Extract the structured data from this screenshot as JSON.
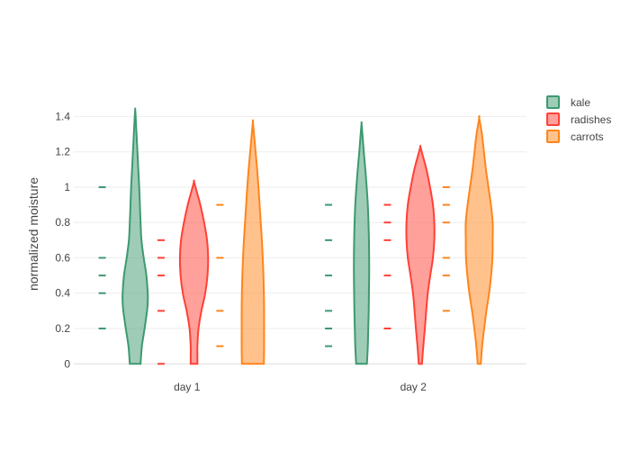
{
  "chart_data": {
    "type": "violin",
    "title": "",
    "xlabel": "",
    "ylabel": "normalized moisture",
    "categories": [
      "day 1",
      "day 2"
    ],
    "ylim": [
      -0.07,
      1.55
    ],
    "yticks": [
      0,
      0.2,
      0.4,
      0.6,
      0.8,
      1,
      1.2,
      1.4
    ],
    "ytick_labels": [
      "0",
      "0.2",
      "0.4",
      "0.6",
      "0.8",
      "1",
      "1.2",
      "1.4"
    ],
    "grid": true,
    "legend_position": "top-right",
    "series": [
      {
        "name": "kale",
        "color": "#3d9970",
        "points": {
          "day 1": [
            0.2,
            0.4,
            0.5,
            0.6,
            1.0
          ],
          "day 2": [
            0.1,
            0.2,
            0.3,
            0.5,
            0.7,
            0.9
          ]
        },
        "violin": {
          "day 1": {
            "min": 0,
            "max": 1.44,
            "profile": [
              [
                0,
                0.24
              ],
              [
                0.1,
                0.3
              ],
              [
                0.2,
                0.42
              ],
              [
                0.3,
                0.53
              ],
              [
                0.35,
                0.56
              ],
              [
                0.4,
                0.56
              ],
              [
                0.5,
                0.5
              ],
              [
                0.6,
                0.38
              ],
              [
                0.7,
                0.28
              ],
              [
                0.8,
                0.24
              ],
              [
                0.9,
                0.21
              ],
              [
                1.0,
                0.18
              ],
              [
                1.1,
                0.14
              ],
              [
                1.2,
                0.1
              ],
              [
                1.3,
                0.06
              ],
              [
                1.4,
                0.02
              ],
              [
                1.44,
                0
              ]
            ]
          },
          "day 2": {
            "min": 0,
            "max": 1.36,
            "profile": [
              [
                0,
                0.24
              ],
              [
                0.1,
                0.28
              ],
              [
                0.2,
                0.3
              ],
              [
                0.3,
                0.32
              ],
              [
                0.4,
                0.33
              ],
              [
                0.5,
                0.34
              ],
              [
                0.6,
                0.34
              ],
              [
                0.7,
                0.33
              ],
              [
                0.8,
                0.31
              ],
              [
                0.9,
                0.28
              ],
              [
                1.0,
                0.23
              ],
              [
                1.1,
                0.17
              ],
              [
                1.2,
                0.1
              ],
              [
                1.3,
                0.04
              ],
              [
                1.36,
                0
              ]
            ]
          }
        }
      },
      {
        "name": "radishes",
        "color": "#ff4136",
        "points": {
          "day 1": [
            0.0,
            0.3,
            0.5,
            0.6,
            0.7
          ],
          "day 2": [
            0.2,
            0.5,
            0.7,
            0.8,
            0.9
          ]
        },
        "violin": {
          "day 1": {
            "min": 0,
            "max": 1.03,
            "profile": [
              [
                0,
                0.15
              ],
              [
                0.05,
                0.15
              ],
              [
                0.1,
                0.15
              ],
              [
                0.2,
                0.2
              ],
              [
                0.3,
                0.33
              ],
              [
                0.4,
                0.5
              ],
              [
                0.5,
                0.6
              ],
              [
                0.6,
                0.63
              ],
              [
                0.7,
                0.58
              ],
              [
                0.8,
                0.45
              ],
              [
                0.9,
                0.28
              ],
              [
                0.97,
                0.13
              ],
              [
                1.03,
                0
              ]
            ]
          },
          "day 2": {
            "min": 0,
            "max": 1.23,
            "profile": [
              [
                0,
                0.07
              ],
              [
                0.1,
                0.13
              ],
              [
                0.2,
                0.2
              ],
              [
                0.3,
                0.26
              ],
              [
                0.4,
                0.33
              ],
              [
                0.5,
                0.44
              ],
              [
                0.6,
                0.56
              ],
              [
                0.7,
                0.62
              ],
              [
                0.8,
                0.62
              ],
              [
                0.9,
                0.56
              ],
              [
                1.0,
                0.43
              ],
              [
                1.1,
                0.27
              ],
              [
                1.2,
                0.06
              ],
              [
                1.23,
                0
              ]
            ]
          }
        }
      },
      {
        "name": "carrots",
        "color": "#ff851b",
        "points": {
          "day 1": [
            0.1,
            0.3,
            0.6,
            0.9
          ],
          "day 2": [
            0.3,
            0.5,
            0.6,
            0.8,
            0.9,
            1.0
          ]
        },
        "violin": {
          "day 1": {
            "min": 0,
            "max": 1.37,
            "profile": [
              [
                0,
                0.49
              ],
              [
                0.1,
                0.5
              ],
              [
                0.2,
                0.5
              ],
              [
                0.3,
                0.5
              ],
              [
                0.4,
                0.49
              ],
              [
                0.5,
                0.47
              ],
              [
                0.6,
                0.44
              ],
              [
                0.7,
                0.4
              ],
              [
                0.8,
                0.35
              ],
              [
                0.9,
                0.3
              ],
              [
                1.0,
                0.25
              ],
              [
                1.1,
                0.19
              ],
              [
                1.2,
                0.12
              ],
              [
                1.3,
                0.05
              ],
              [
                1.37,
                0
              ]
            ]
          },
          "day 2": {
            "min": 0,
            "max": 1.39,
            "profile": [
              [
                0,
                0.07
              ],
              [
                0.1,
                0.13
              ],
              [
                0.2,
                0.22
              ],
              [
                0.3,
                0.32
              ],
              [
                0.4,
                0.44
              ],
              [
                0.5,
                0.53
              ],
              [
                0.6,
                0.59
              ],
              [
                0.7,
                0.6
              ],
              [
                0.8,
                0.6
              ],
              [
                0.9,
                0.52
              ],
              [
                1.0,
                0.41
              ],
              [
                1.1,
                0.3
              ],
              [
                1.2,
                0.21
              ],
              [
                1.3,
                0.12
              ],
              [
                1.39,
                0
              ]
            ]
          }
        }
      }
    ]
  }
}
